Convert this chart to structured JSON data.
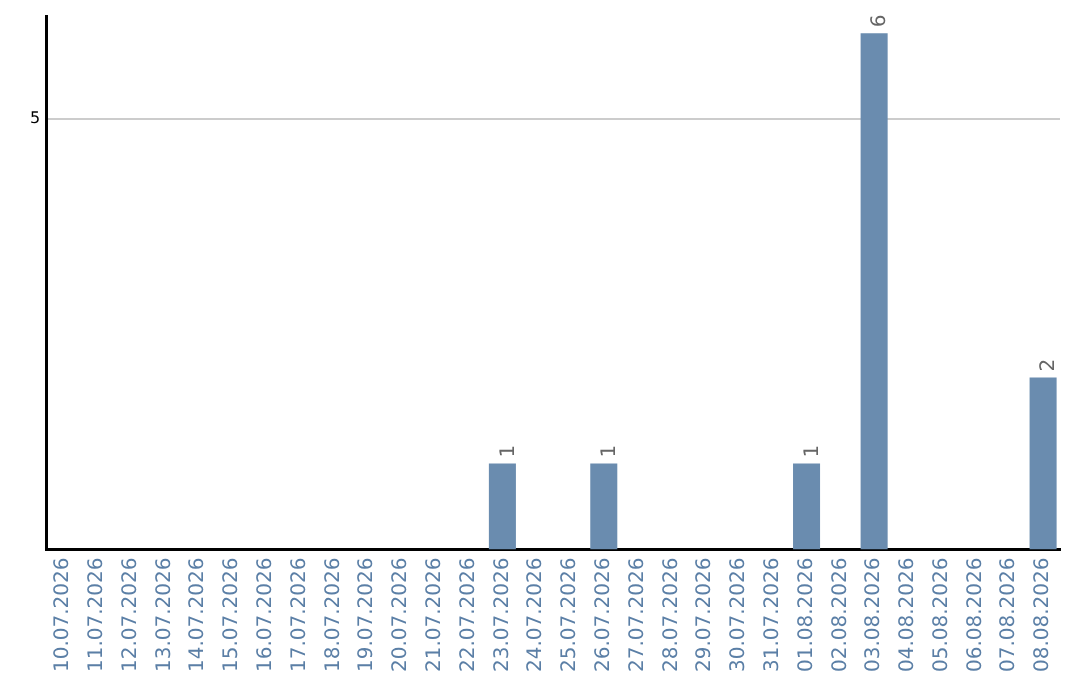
{
  "chart_data": {
    "type": "bar",
    "categories": [
      "10.07.2026",
      "11.07.2026",
      "12.07.2026",
      "13.07.2026",
      "14.07.2026",
      "15.07.2026",
      "16.07.2026",
      "17.07.2026",
      "18.07.2026",
      "19.07.2026",
      "20.07.2026",
      "21.07.2026",
      "22.07.2026",
      "23.07.2026",
      "24.07.2026",
      "25.07.2026",
      "26.07.2026",
      "27.07.2026",
      "28.07.2026",
      "29.07.2026",
      "30.07.2026",
      "31.07.2026",
      "01.08.2026",
      "02.08.2026",
      "03.08.2026",
      "04.08.2026",
      "05.08.2026",
      "06.08.2026",
      "07.08.2026",
      "08.08.2026"
    ],
    "values": [
      null,
      null,
      null,
      null,
      null,
      null,
      null,
      null,
      null,
      null,
      null,
      null,
      null,
      1,
      null,
      null,
      1,
      null,
      null,
      null,
      null,
      null,
      1,
      null,
      6,
      null,
      null,
      null,
      null,
      2
    ],
    "data_labels": true,
    "color": "#6a8caf",
    "ylim": [
      0,
      6.2
    ],
    "yticks": [
      5
    ],
    "grid": "y",
    "legend": false
  }
}
